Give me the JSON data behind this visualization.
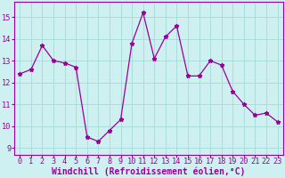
{
  "x": [
    0,
    1,
    2,
    3,
    4,
    5,
    6,
    7,
    8,
    9,
    10,
    11,
    12,
    13,
    14,
    15,
    16,
    17,
    18,
    19,
    20,
    21,
    22,
    23
  ],
  "y": [
    12.4,
    12.6,
    13.7,
    13.0,
    12.9,
    12.7,
    9.5,
    9.3,
    9.8,
    10.3,
    13.8,
    15.2,
    13.1,
    14.1,
    14.6,
    12.3,
    12.3,
    13.0,
    12.8,
    11.6,
    11.0,
    10.5,
    10.6,
    10.2
  ],
  "line_color": "#990099",
  "marker": "*",
  "marker_size": 3.5,
  "background_color": "#cff0f0",
  "grid_color": "#aadddd",
  "xlabel": "Windchill (Refroidissement éolien,°C)",
  "ylim": [
    8.7,
    15.7
  ],
  "xlim": [
    -0.5,
    23.5
  ],
  "yticks": [
    9,
    10,
    11,
    12,
    13,
    14,
    15
  ],
  "xticks": [
    0,
    1,
    2,
    3,
    4,
    5,
    6,
    7,
    8,
    9,
    10,
    11,
    12,
    13,
    14,
    15,
    16,
    17,
    18,
    19,
    20,
    21,
    22,
    23
  ],
  "tick_color": "#990099",
  "label_color": "#990099",
  "axis_color": "#990099",
  "tick_fontsize": 6.2,
  "xlabel_fontsize": 7.0
}
